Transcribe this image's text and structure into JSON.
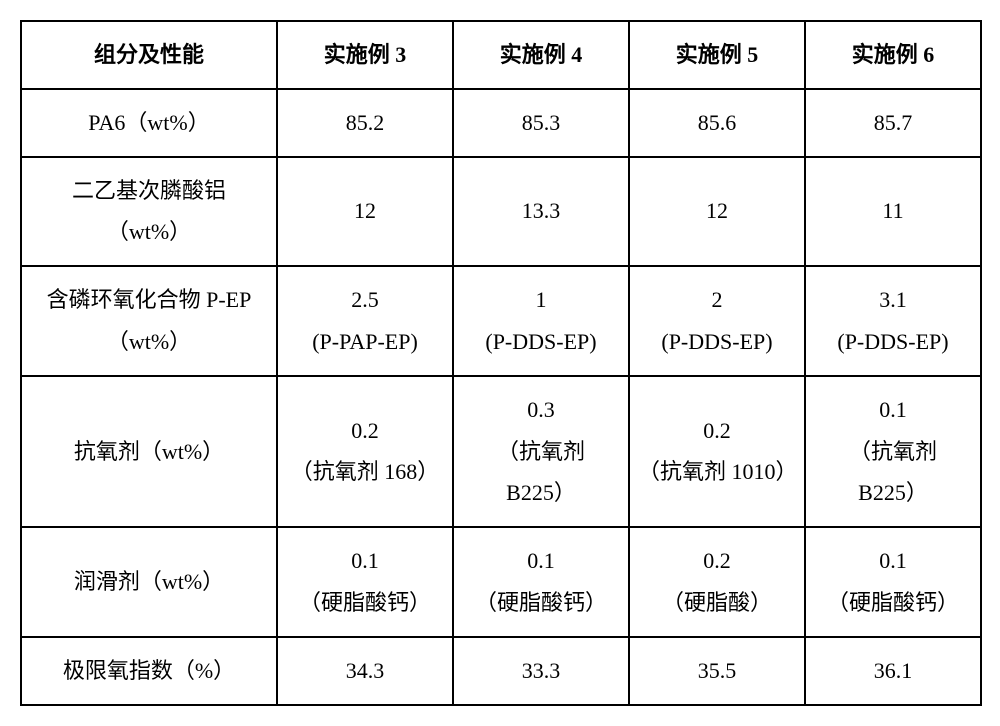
{
  "table": {
    "columns": [
      "组分及性能",
      "实施例 3",
      "实施例 4",
      "实施例 5",
      "实施例 6"
    ],
    "rows": [
      {
        "label": "PA6（wt%）",
        "cells": [
          "85.2",
          "85.3",
          "85.6",
          "85.7"
        ]
      },
      {
        "label_line1": "二乙基次膦酸铝",
        "label_line2": "（wt%）",
        "cells": [
          "12",
          "13.3",
          "12",
          "11"
        ]
      },
      {
        "label_line1": "含磷环氧化合物 P-EP",
        "label_line2": "（wt%）",
        "cells_line1": [
          "2.5",
          "1",
          "2",
          "3.1"
        ],
        "cells_line2": [
          "(P-PAP-EP)",
          "(P-DDS-EP)",
          "(P-DDS-EP)",
          "(P-DDS-EP)"
        ]
      },
      {
        "label": "抗氧剂（wt%）",
        "cells_line1": [
          "0.2",
          "0.3",
          "0.2",
          "0.1"
        ],
        "cells_line2": [
          "（抗氧剂 168）",
          "（抗氧剂",
          "（抗氧剂 1010）",
          "（抗氧剂"
        ],
        "cells_line3": [
          "",
          "B225）",
          "",
          "B225）"
        ]
      },
      {
        "label": "润滑剂（wt%）",
        "cells_line1": [
          "0.1",
          "0.1",
          "0.2",
          "0.1"
        ],
        "cells_line2": [
          "（硬脂酸钙）",
          "（硬脂酸钙）",
          "（硬脂酸）",
          "（硬脂酸钙）"
        ]
      },
      {
        "label": "极限氧指数（%）",
        "cells": [
          "34.3",
          "33.3",
          "35.5",
          "36.1"
        ]
      }
    ],
    "border_color": "#000000",
    "background_color": "#ffffff",
    "font_size": 22
  }
}
